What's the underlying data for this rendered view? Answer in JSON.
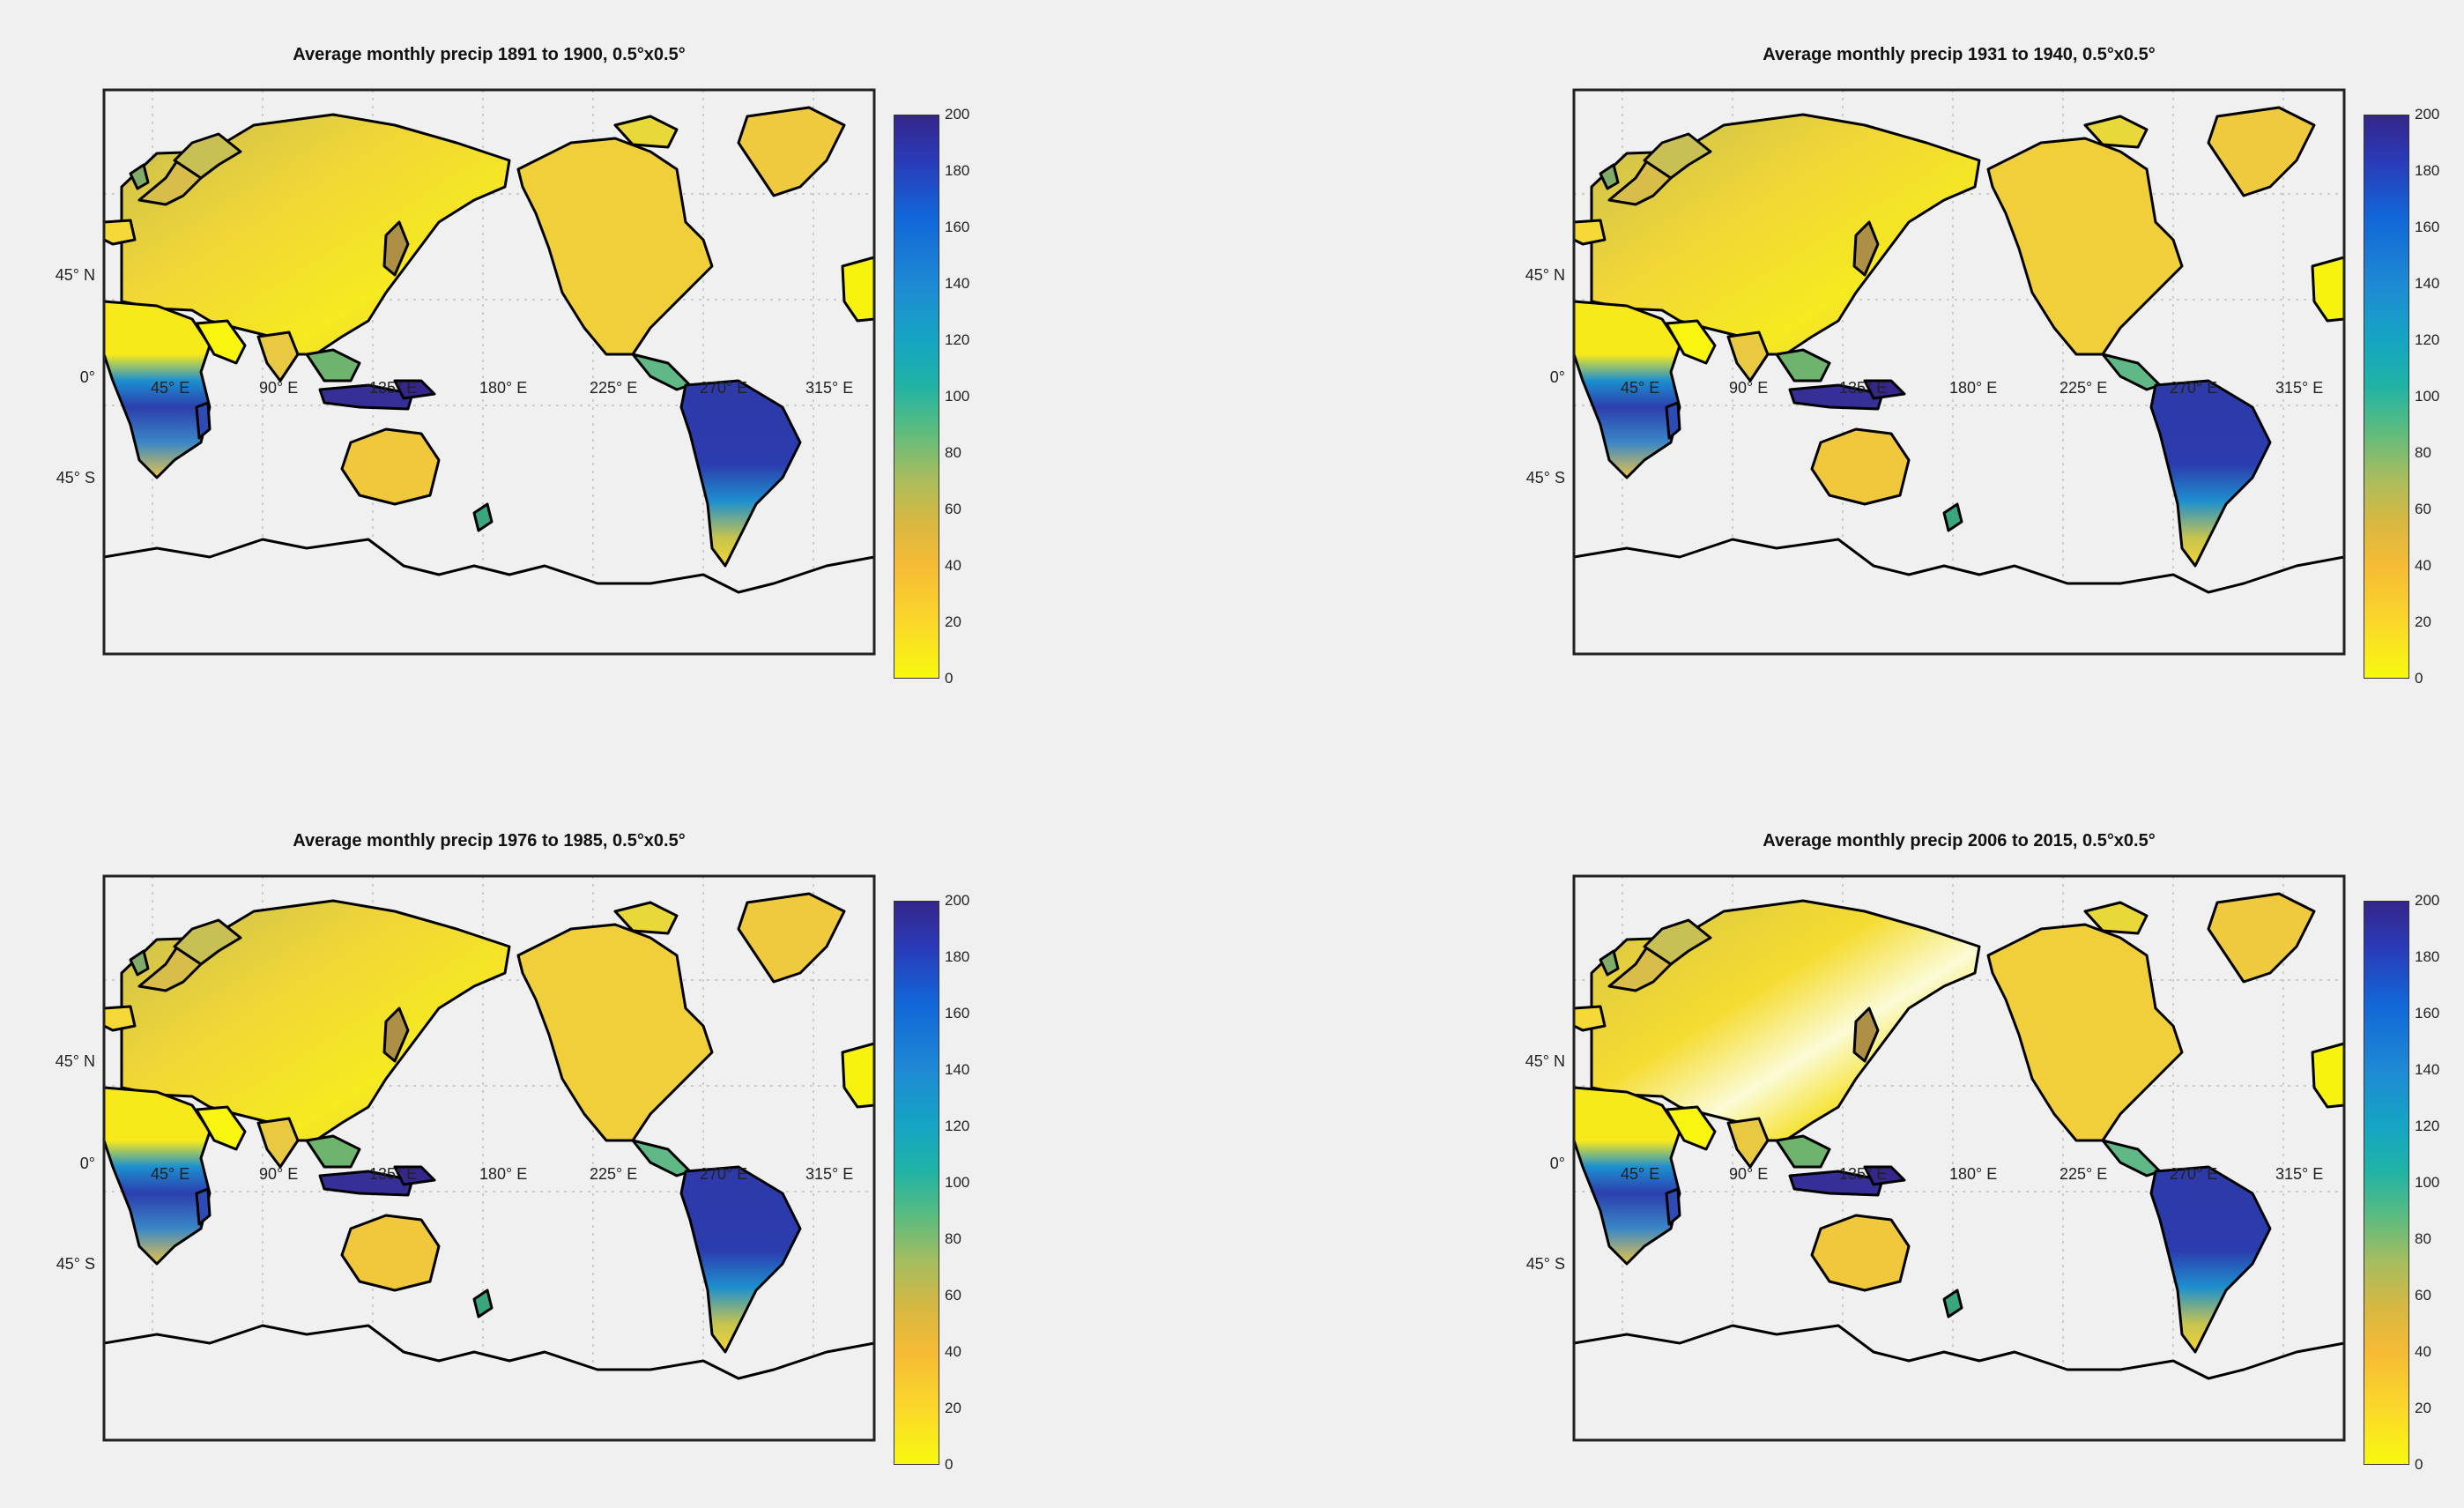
{
  "panels": [
    {
      "title": "Average monthly precip 1891 to 1900,  0.5°x0.5°",
      "variant": "p1"
    },
    {
      "title": "Average monthly precip 1931 to 1940,  0.5°x0.5°",
      "variant": "p2"
    },
    {
      "title": "Average monthly precip 1976 to 1985,  0.5°x0.5°",
      "variant": "p3"
    },
    {
      "title": "Average monthly precip 2006 to 2015,  0.5°x0.5°",
      "variant": "p4"
    }
  ],
  "axes": {
    "lat_labels": [
      "45° N",
      "0°",
      "45° S"
    ],
    "lon_labels": [
      "45° E",
      "90° E",
      "135° E",
      "180° E",
      "225° E",
      "270° E",
      "315° E"
    ]
  },
  "colorbar": {
    "ticks": [
      "200",
      "180",
      "160",
      "140",
      "120",
      "100",
      "80",
      "60",
      "40",
      "20",
      "0"
    ],
    "min": 0,
    "max": 200
  },
  "colors": {
    "low": "#f8f90e",
    "mid": "#20b3a5",
    "high": "#35268a",
    "background": "#f0f0f0",
    "coast": "#000000"
  }
}
